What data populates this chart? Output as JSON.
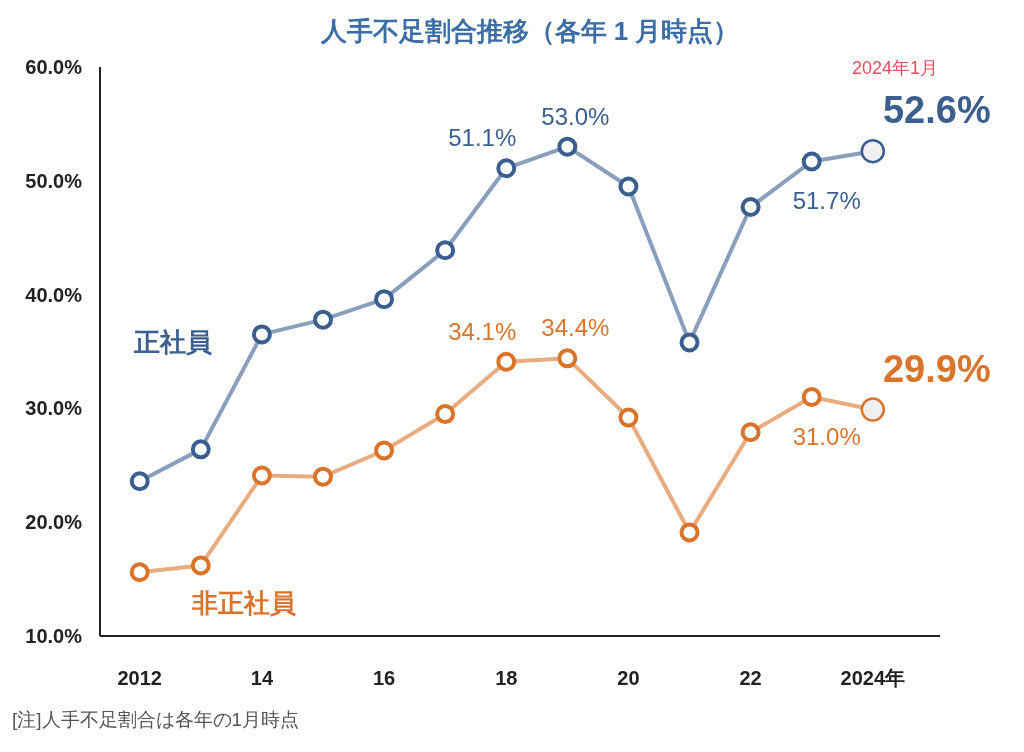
{
  "chart_data": {
    "type": "line",
    "title": "人手不足割合推移（各年 1 月時点）",
    "x": [
      2012,
      2013,
      2014,
      2015,
      2016,
      2017,
      2018,
      2019,
      2020,
      2021,
      2022,
      2023,
      2024
    ],
    "series": [
      {
        "name": "正社員",
        "color": "#3a5f8f",
        "values": [
          23.6,
          26.4,
          36.5,
          37.8,
          39.6,
          43.9,
          51.1,
          53.0,
          49.5,
          35.8,
          47.7,
          51.7,
          52.6
        ],
        "value_labels": [
          null,
          null,
          null,
          null,
          null,
          null,
          "51.1%",
          "53.0%",
          null,
          null,
          null,
          "51.7%",
          "52.6%"
        ]
      },
      {
        "name": "非正社員",
        "color": "#d9742a",
        "values": [
          15.6,
          16.2,
          24.1,
          24.0,
          26.3,
          29.5,
          34.1,
          34.4,
          29.2,
          19.1,
          27.9,
          31.0,
          29.9
        ],
        "value_labels": [
          null,
          null,
          null,
          null,
          null,
          null,
          "34.1%",
          "34.4%",
          null,
          null,
          null,
          "31.0%",
          "29.9%"
        ]
      }
    ],
    "xlim": [
      2011.35,
      2025.1
    ],
    "xticks": [
      {
        "value": 2012,
        "label": "2012"
      },
      {
        "value": 2014,
        "label": "14"
      },
      {
        "value": 2016,
        "label": "16"
      },
      {
        "value": 2018,
        "label": "18"
      },
      {
        "value": 2020,
        "label": "20"
      },
      {
        "value": 2022,
        "label": "22"
      },
      {
        "value": 2024,
        "label": "2024年"
      }
    ],
    "ylim": [
      10,
      60
    ],
    "yticks": [
      {
        "value": 10,
        "label": "10.0%"
      },
      {
        "value": 20,
        "label": "20.0%"
      },
      {
        "value": 30,
        "label": "30.0%"
      },
      {
        "value": 40,
        "label": "40.0%"
      },
      {
        "value": 50,
        "label": "50.0%"
      },
      {
        "value": 60,
        "label": "60.0%"
      }
    ],
    "grid": false,
    "marker": "circle",
    "line_style": "solid",
    "annotations": [
      "2024年1月",
      "[注]人手不足割合は各年の1月時点"
    ]
  }
}
